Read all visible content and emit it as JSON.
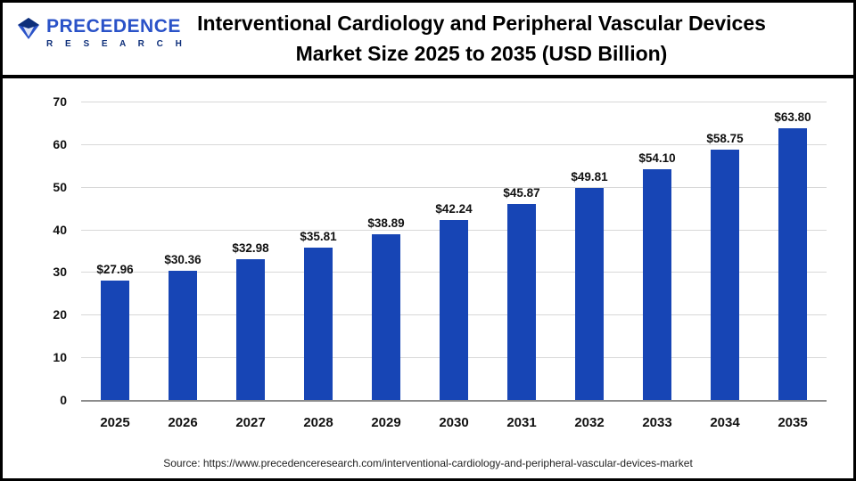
{
  "header": {
    "title_line1": "Interventional Cardiology and Peripheral Vascular Devices",
    "title_line2": "Market Size 2025 to 2035 (USD Billion)",
    "logo": {
      "name": "PRECEDENCE",
      "sub": "R E S E A R C H",
      "name_color": "#2a52c8",
      "sub_color": "#0e2f7a"
    }
  },
  "chart_data": {
    "type": "bar",
    "title": "Interventional Cardiology and Peripheral Vascular Devices Market Size 2025 to 2035 (USD Billion)",
    "categories": [
      "2025",
      "2026",
      "2027",
      "2028",
      "2029",
      "2030",
      "2031",
      "2032",
      "2033",
      "2034",
      "2035"
    ],
    "values": [
      27.96,
      30.36,
      32.98,
      35.81,
      38.89,
      42.24,
      45.87,
      49.81,
      54.1,
      58.75,
      63.8
    ],
    "bar_labels": [
      "$27.96",
      "$30.36",
      "$32.98",
      "$35.81",
      "$38.89",
      "$42.24",
      "$45.87",
      "$49.81",
      "$54.10",
      "$58.75",
      "$63.80"
    ],
    "xlabel": "",
    "ylabel": "",
    "ylim": [
      0,
      70
    ],
    "yticks": [
      0,
      10,
      20,
      30,
      40,
      50,
      60,
      70
    ],
    "bar_color": "#1745b5",
    "grid": true,
    "legend": false
  },
  "footer": {
    "source": "Source: https://www.precedenceresearch.com/interventional-cardiology-and-peripheral-vascular-devices-market"
  }
}
